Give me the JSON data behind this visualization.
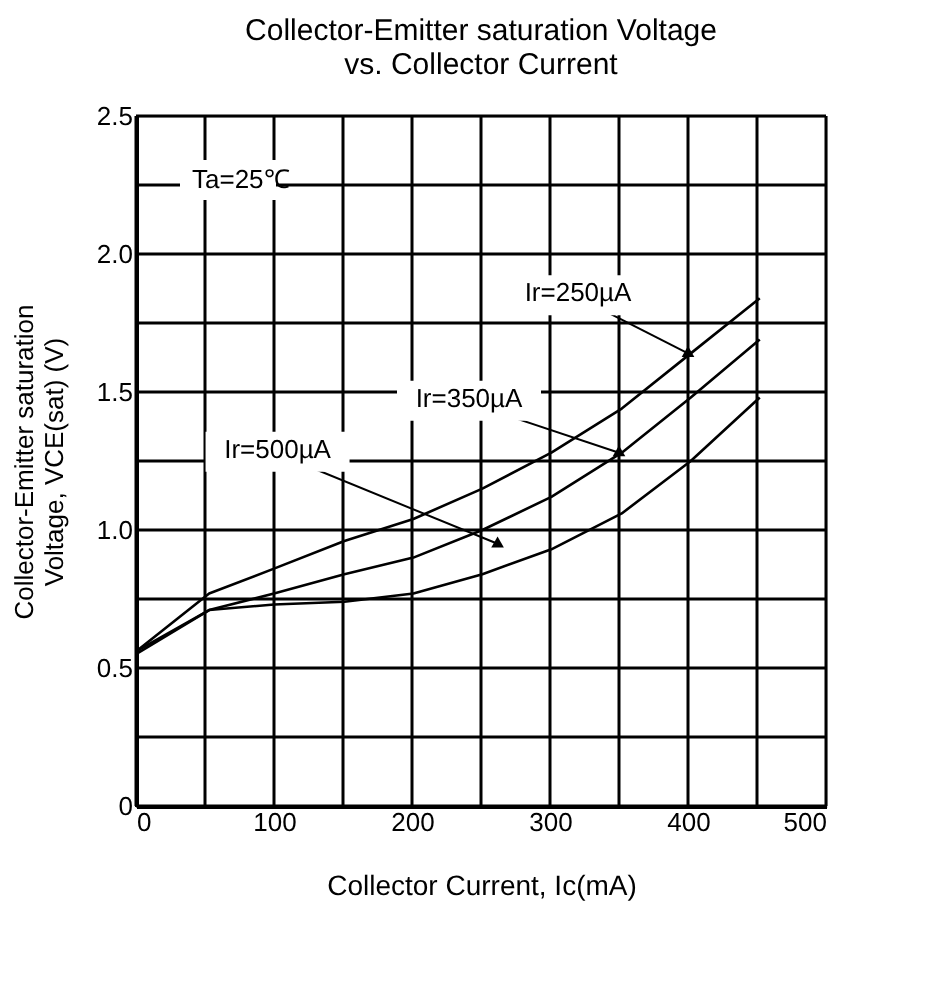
{
  "chart_data": {
    "type": "line",
    "title": [
      "Collector-Emitter saturation Voltage",
      "vs. Collector Current"
    ],
    "xlabel": "Collector Current, Ic(mA)",
    "ylabel": [
      "Collector-Emitter saturation",
      "Voltage, VCE(sat)  (V)"
    ],
    "xlim": [
      0,
      500
    ],
    "ylim": [
      0,
      2.5
    ],
    "xticks": [
      0,
      {
        "value": 50,
        "label": null
      },
      100,
      {
        "value": 150,
        "label": null
      },
      200,
      {
        "value": 250,
        "label": null
      },
      300,
      {
        "value": 350,
        "label": null
      },
      400,
      {
        "value": 450,
        "label": null
      },
      500
    ],
    "yticks": [
      0,
      {
        "value": 0.25,
        "label": null
      },
      0.5,
      {
        "value": 0.75,
        "label": null
      },
      {
        "value": 1,
        "label": "1.0"
      },
      {
        "value": 1.25,
        "label": null
      },
      1.5,
      {
        "value": 1.75,
        "label": null
      },
      {
        "value": 2,
        "label": "2.0"
      },
      {
        "value": 2.25,
        "label": null
      },
      2.5
    ],
    "grid": true,
    "legend": false,
    "line_style": "solid",
    "marker": "none",
    "x": [
      0,
      53,
      100,
      151,
      201,
      251,
      301,
      352,
      402,
      452
    ],
    "series": [
      {
        "color": "#000000",
        "values": [
          0.56,
          0.77,
          0.86,
          0.96,
          1.04,
          1.15,
          1.28,
          1.44,
          1.64,
          1.84
        ]
      },
      {
        "color": "#000000",
        "values": [
          0.56,
          0.71,
          0.77,
          0.84,
          0.9,
          1.0,
          1.12,
          1.28,
          1.48,
          1.69
        ]
      },
      {
        "color": "#000000",
        "values": [
          0.55,
          0.71,
          0.73,
          0.74,
          0.77,
          0.84,
          0.93,
          1.06,
          1.25,
          1.48
        ]
      }
    ],
    "annotations": [
      "Ta=25℃",
      {
        "text": "Ir=250µA",
        "x": 400,
        "y": 1.64
      },
      {
        "text": "Ir=350µA",
        "x": 350,
        "y": 1.28
      },
      {
        "text": "Ir=500µA",
        "x": 262,
        "y": 0.95
      }
    ]
  }
}
